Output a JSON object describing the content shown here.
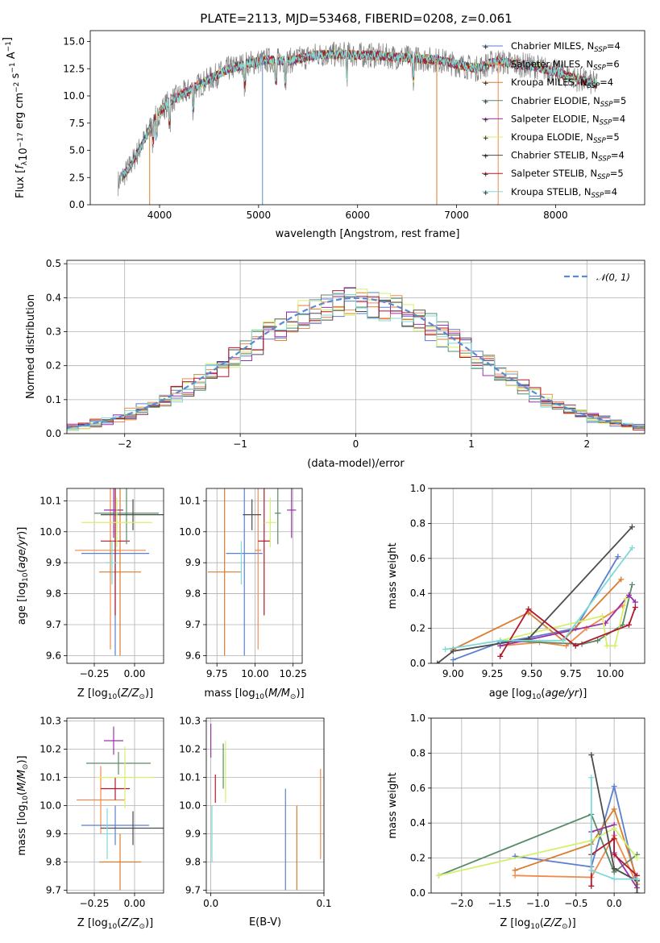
{
  "figure": {
    "title": "PLATE=2113, MJD=53468, FIBERID=0208, z=0.061"
  },
  "colors": {
    "Chabrier MILES": "#5b7fcf",
    "Salpeter MILES": "#f08a4b",
    "Kroupa MILES": "#d97c2e",
    "Chabrier ELODIE": "#5a8a68",
    "Salpeter ELODIE": "#9932a8",
    "Kroupa ELODIE": "#d5f06b",
    "Chabrier STELIB": "#4d4d4d",
    "Salpeter STELIB": "#b2182b",
    "Kroupa STELIB": "#7fd9d9",
    "data": "#808080",
    "normal": "#5b8ad0",
    "grid": "#b0b0b0"
  },
  "chart_data": [
    {
      "id": "spectrum",
      "type": "line",
      "title": "PLATE=2113, MJD=53468, FIBERID=0208, z=0.061",
      "xlabel": "wavelength [Angstrom, rest frame]",
      "ylabel": "Flux [f_λ 10^-17 erg cm^-2 s^-1 A^-1]",
      "xlim": [
        3300,
        8900
      ],
      "ylim": [
        0,
        16
      ],
      "xticks": [
        4000,
        5000,
        6000,
        7000,
        8000
      ],
      "yticks": [
        0.0,
        2.5,
        5.0,
        7.5,
        10.0,
        12.5,
        15.0
      ],
      "grid": false,
      "legend_loc": "upper right",
      "legend": [
        {
          "label": "Chabrier MILES, N",
          "sub": "SSP",
          "suffix": "=4",
          "key": "Chabrier MILES"
        },
        {
          "label": "Salpeter MILES, N",
          "sub": "SSP",
          "suffix": "=6",
          "key": "Salpeter MILES"
        },
        {
          "label": "Kroupa MILES, N",
          "sub": "SSP",
          "suffix": "=4",
          "key": "Kroupa MILES"
        },
        {
          "label": "Chabrier ELODIE, N",
          "sub": "SSP",
          "suffix": "=5",
          "key": "Chabrier ELODIE"
        },
        {
          "label": "Salpeter ELODIE, N",
          "sub": "SSP",
          "suffix": "=4",
          "key": "Salpeter ELODIE"
        },
        {
          "label": "Kroupa ELODIE, N",
          "sub": "SSP",
          "suffix": "=5",
          "key": "Kroupa ELODIE"
        },
        {
          "label": "Chabrier STELIB, N",
          "sub": "SSP",
          "suffix": "=4",
          "key": "Chabrier STELIB"
        },
        {
          "label": "Salpeter STELIB, N",
          "sub": "SSP",
          "suffix": "=5",
          "key": "Salpeter STELIB"
        },
        {
          "label": "Kroupa STELIB, N",
          "sub": "SSP",
          "suffix": "=4",
          "key": "Kroupa STELIB"
        }
      ],
      "continuum": {
        "x": [
          3580,
          3700,
          3850,
          3950,
          4100,
          4300,
          4500,
          4700,
          4900,
          5100,
          5300,
          5600,
          5900,
          6200,
          6500,
          6800,
          7000,
          7200,
          7400,
          7600,
          7800,
          8000,
          8200,
          8400
        ],
        "y": [
          2.0,
          3.5,
          6.0,
          8.0,
          9.5,
          10.5,
          11.5,
          12.5,
          13.0,
          13.3,
          13.2,
          13.8,
          13.8,
          13.7,
          13.5,
          13.3,
          12.9,
          12.5,
          13.2,
          12.9,
          12.7,
          12.2,
          11.6,
          11.1
        ]
      }
    },
    {
      "id": "residuals",
      "type": "histogram",
      "xlabel": "(data-model)/error",
      "ylabel": "Normed distribution",
      "xlim": [
        -2.5,
        2.5
      ],
      "ylim": [
        0,
        0.51
      ],
      "xticks": [
        -2,
        -1,
        0,
        1,
        2
      ],
      "yticks": [
        0.0,
        0.1,
        0.2,
        0.3,
        0.4,
        0.5
      ],
      "grid": true,
      "legend_loc": "upper right",
      "normal_label": "𝒩(0, 1)",
      "bin_width": 0.1
    },
    {
      "id": "age-vs-Z",
      "type": "errorbar",
      "xlabel": "Z [log10(Z/Z⊙)]",
      "ylabel": "age [log10(age/yr)]",
      "xlim": [
        -0.42,
        0.18
      ],
      "ylim": [
        9.575,
        10.14
      ],
      "xticks": [
        -0.25,
        0.0
      ],
      "yticks": [
        9.6,
        9.7,
        9.8,
        9.9,
        10.0,
        10.1
      ],
      "grid": true,
      "points": [
        {
          "key": "Salpeter MILES",
          "x": -0.15,
          "y": 9.94,
          "xerr": 0.22,
          "yerr": 0.32
        },
        {
          "key": "Chabrier MILES",
          "x": -0.12,
          "y": 9.93,
          "xerr": 0.21,
          "yerr": 0.33
        },
        {
          "key": "Kroupa MILES",
          "x": -0.09,
          "y": 9.87,
          "xerr": 0.13,
          "yerr": 0.27
        },
        {
          "key": "Salpeter STELIB",
          "x": -0.12,
          "y": 9.97,
          "xerr": 0.09,
          "yerr": 0.24
        },
        {
          "key": "Chabrier ELODIE",
          "x": -0.05,
          "y": 10.06,
          "xerr": 0.2,
          "yerr": 0.1
        },
        {
          "key": "Chabrier STELIB",
          "x": -0.01,
          "y": 10.055,
          "xerr": 0.2,
          "yerr": 0.05
        },
        {
          "key": "Salpeter ELODIE",
          "x": -0.13,
          "y": 10.07,
          "xerr": 0.06,
          "yerr": 0.09
        },
        {
          "key": "Kroupa ELODIE",
          "x": -0.11,
          "y": 10.03,
          "xerr": 0.22,
          "yerr": 0.08
        },
        {
          "key": "Kroupa STELIB",
          "x": -0.14,
          "y": 9.9,
          "xerr": 0.04,
          "yerr": 0.07
        }
      ]
    },
    {
      "id": "age-vs-mass",
      "type": "errorbar",
      "xlabel": "mass [log10(M/M⊙)]",
      "xlim": [
        9.68,
        10.31
      ],
      "ylim": [
        9.575,
        10.14
      ],
      "xticks": [
        9.75,
        10.0,
        10.25
      ],
      "yticks": [
        9.6,
        9.7,
        9.8,
        9.9,
        10.0,
        10.1
      ],
      "grid": true,
      "points": [
        {
          "key": "Kroupa MILES",
          "x": 9.8,
          "y": 9.87,
          "xerr": 0.11,
          "yerr": 0.27
        },
        {
          "key": "Chabrier MILES",
          "x": 9.93,
          "y": 9.93,
          "xerr": 0.12,
          "yerr": 0.33
        },
        {
          "key": "Salpeter MILES",
          "x": 10.02,
          "y": 9.94,
          "xerr": 0.02,
          "yerr": 0.32
        },
        {
          "key": "Kroupa STELIB",
          "x": 9.91,
          "y": 9.9,
          "xerr": 0.01,
          "yerr": 0.07
        },
        {
          "key": "Salpeter STELIB",
          "x": 10.06,
          "y": 9.97,
          "xerr": 0.04,
          "yerr": 0.24
        },
        {
          "key": "Chabrier STELIB",
          "x": 9.98,
          "y": 10.055,
          "xerr": 0.06,
          "yerr": 0.05
        },
        {
          "key": "Kroupa ELODIE",
          "x": 10.1,
          "y": 10.03,
          "xerr": 0.04,
          "yerr": 0.08
        },
        {
          "key": "Chabrier ELODIE",
          "x": 10.15,
          "y": 10.06,
          "xerr": 0.02,
          "yerr": 0.1
        },
        {
          "key": "Salpeter ELODIE",
          "x": 10.24,
          "y": 10.07,
          "xerr": 0.03,
          "yerr": 0.09
        }
      ]
    },
    {
      "id": "weight-vs-age",
      "type": "line",
      "xlabel": "age [log10(age/yr)]",
      "ylabel": "mass weight",
      "xlim": [
        8.86,
        10.22
      ],
      "ylim": [
        0,
        1
      ],
      "xticks": [
        9.0,
        9.25,
        9.5,
        9.75,
        10.0
      ],
      "yticks": [
        0.0,
        0.2,
        0.4,
        0.6,
        0.8,
        1.0
      ],
      "grid": true,
      "series": [
        {
          "key": "Chabrier MILES",
          "x": [
            9.0,
            9.3,
            9.5,
            9.78,
            10.05
          ],
          "y": [
            0.02,
            0.12,
            0.15,
            0.2,
            0.61
          ]
        },
        {
          "key": "Salpeter MILES",
          "x": [
            9.3,
            9.55,
            9.72,
            9.85,
            10.08
          ],
          "y": [
            0.1,
            0.12,
            0.1,
            0.2,
            0.33
          ]
        },
        {
          "key": "Kroupa MILES",
          "x": [
            9.0,
            9.48,
            9.7,
            10.07
          ],
          "y": [
            0.08,
            0.29,
            0.13,
            0.48
          ]
        },
        {
          "key": "Chabrier ELODIE",
          "x": [
            9.3,
            9.82,
            9.92,
            10.08,
            10.14
          ],
          "y": [
            0.13,
            0.11,
            0.13,
            0.22,
            0.45
          ]
        },
        {
          "key": "Salpeter ELODIE",
          "x": [
            9.3,
            9.97,
            10.12,
            10.16
          ],
          "y": [
            0.1,
            0.23,
            0.39,
            0.35
          ]
        },
        {
          "key": "Kroupa ELODIE",
          "x": [
            9.3,
            9.95,
            9.98,
            10.03,
            10.1
          ],
          "y": [
            0.13,
            0.27,
            0.1,
            0.1,
            0.37
          ]
        },
        {
          "key": "Chabrier STELIB",
          "x": [
            8.9,
            9.0,
            9.48,
            10.14
          ],
          "y": [
            0.0,
            0.07,
            0.14,
            0.78
          ]
        },
        {
          "key": "Salpeter STELIB",
          "x": [
            9.3,
            9.48,
            9.78,
            10.12,
            10.16
          ],
          "y": [
            0.04,
            0.31,
            0.1,
            0.22,
            0.32
          ]
        },
        {
          "key": "Kroupa STELIB",
          "x": [
            8.95,
            9.3,
            9.7,
            10.14
          ],
          "y": [
            0.08,
            0.13,
            0.13,
            0.66
          ]
        }
      ]
    },
    {
      "id": "mass-vs-Z",
      "type": "errorbar",
      "xlabel": "Z [log10(Z/Z⊙)]",
      "ylabel": "mass [log10(M/M⊙)]",
      "xlim": [
        -0.42,
        0.18
      ],
      "ylim": [
        9.69,
        10.31
      ],
      "xticks": [
        -0.25,
        0.0
      ],
      "yticks": [
        9.7,
        9.8,
        9.9,
        10.0,
        10.1,
        10.2,
        10.3
      ],
      "grid": true,
      "points": [
        {
          "key": "Salpeter MILES",
          "x": -0.21,
          "y": 10.02,
          "xerr": 0.15,
          "yerr": 0.12
        },
        {
          "key": "Chabrier MILES",
          "x": -0.12,
          "y": 9.93,
          "xerr": 0.21,
          "yerr": 0.07
        },
        {
          "key": "Kroupa MILES",
          "x": -0.09,
          "y": 9.8,
          "xerr": 0.13,
          "yerr": 0.1
        },
        {
          "key": "Chabrier STELIB",
          "x": -0.01,
          "y": 9.92,
          "xerr": 0.2,
          "yerr": 0.06
        },
        {
          "key": "Kroupa STELIB",
          "x": -0.17,
          "y": 9.9,
          "xerr": 0.03,
          "yerr": 0.09
        },
        {
          "key": "Salpeter STELIB",
          "x": -0.12,
          "y": 10.06,
          "xerr": 0.09,
          "yerr": 0.04
        },
        {
          "key": "Chabrier ELODIE",
          "x": -0.1,
          "y": 10.15,
          "xerr": 0.2,
          "yerr": 0.04
        },
        {
          "key": "Kroupa ELODIE",
          "x": -0.06,
          "y": 10.1,
          "xerr": 0.18,
          "yerr": 0.11
        },
        {
          "key": "Salpeter ELODIE",
          "x": -0.13,
          "y": 10.23,
          "xerr": 0.06,
          "yerr": 0.05
        }
      ]
    },
    {
      "id": "mass-vs-ebv",
      "type": "errorbar",
      "xlabel": "E(B-V)",
      "xlim": [
        -0.004,
        0.1
      ],
      "ylim": [
        9.69,
        10.31
      ],
      "xticks": [
        0.0,
        0.1
      ],
      "yticks": [
        9.7,
        9.8,
        9.9,
        10.0,
        10.1,
        10.2,
        10.3
      ],
      "grid": true,
      "points": [
        {
          "key": "Salpeter ELODIE",
          "x": 0.0,
          "y": 10.23,
          "xerr": 0.0,
          "yerr": 0.06
        },
        {
          "key": "Kroupa STELIB",
          "x": 0.001,
          "y": 9.9,
          "xerr": 0.0,
          "yerr": 0.1
        },
        {
          "key": "Salpeter STELIB",
          "x": 0.004,
          "y": 10.06,
          "xerr": 0.0,
          "yerr": 0.05
        },
        {
          "key": "Chabrier ELODIE",
          "x": 0.011,
          "y": 10.14,
          "xerr": 0.0,
          "yerr": 0.08
        },
        {
          "key": "Kroupa ELODIE",
          "x": 0.013,
          "y": 10.12,
          "xerr": 0.0,
          "yerr": 0.11
        },
        {
          "key": "Chabrier MILES",
          "x": 0.066,
          "y": 9.88,
          "xerr": 0.0,
          "yerr": 0.18
        },
        {
          "key": "Kroupa MILES",
          "x": 0.076,
          "y": 9.85,
          "xerr": 0.0,
          "yerr": 0.15
        },
        {
          "key": "Salpeter MILES",
          "x": 0.097,
          "y": 9.97,
          "xerr": 0.0,
          "yerr": 0.16
        }
      ]
    },
    {
      "id": "weight-vs-Z",
      "type": "line",
      "xlabel": "Z [log10(Z/Z⊙)]",
      "ylabel": "mass weight",
      "xlim": [
        -2.4,
        0.4
      ],
      "ylim": [
        0,
        1
      ],
      "xticks": [
        -2.0,
        -1.5,
        -1.0,
        -0.5,
        0.0
      ],
      "yticks": [
        0.0,
        0.2,
        0.4,
        0.6,
        0.8,
        1.0
      ],
      "grid": true,
      "series": [
        {
          "key": "Chabrier MILES",
          "x": [
            -1.3,
            -0.3,
            0.0,
            0.3
          ],
          "y": [
            0.21,
            0.15,
            0.61,
            0.05
          ]
        },
        {
          "key": "Salpeter MILES",
          "x": [
            -1.3,
            -0.3,
            0.0,
            0.3
          ],
          "y": [
            0.1,
            0.09,
            0.33,
            0.05
          ]
        },
        {
          "key": "Kroupa MILES",
          "x": [
            -1.3,
            -0.3,
            0.0,
            0.3
          ],
          "y": [
            0.13,
            0.28,
            0.48,
            0.08
          ]
        },
        {
          "key": "Chabrier ELODIE",
          "x": [
            -2.3,
            -0.3,
            0.0,
            0.3
          ],
          "y": [
            0.1,
            0.45,
            0.12,
            0.22
          ]
        },
        {
          "key": "Salpeter ELODIE",
          "x": [
            -0.3,
            0.0,
            0.0,
            0.3
          ],
          "y": [
            0.35,
            0.39,
            0.23,
            0.03
          ]
        },
        {
          "key": "Kroupa ELODIE",
          "x": [
            -2.3,
            -0.3,
            0.0,
            0.3
          ],
          "y": [
            0.1,
            0.3,
            0.37,
            0.2
          ]
        },
        {
          "key": "Chabrier STELIB",
          "x": [
            -0.3,
            0.0,
            0.3,
            0.3
          ],
          "y": [
            0.79,
            0.14,
            0.07,
            0.0
          ]
        },
        {
          "key": "Salpeter STELIB",
          "x": [
            -0.3,
            -0.3,
            0.0,
            0.0,
            0.3
          ],
          "y": [
            0.04,
            0.22,
            0.31,
            0.22,
            0.1
          ]
        },
        {
          "key": "Kroupa STELIB",
          "x": [
            -0.3,
            -0.3,
            0.0,
            0.3
          ],
          "y": [
            0.66,
            0.13,
            0.08,
            0.08
          ]
        }
      ]
    }
  ]
}
